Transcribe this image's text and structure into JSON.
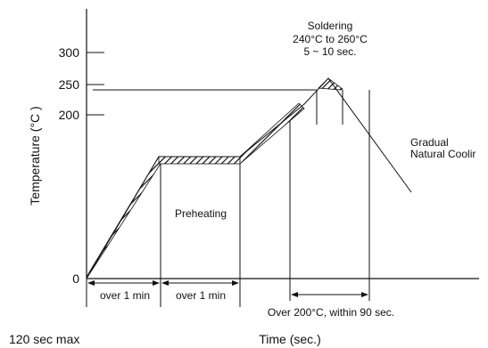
{
  "chart_data": {
    "type": "line",
    "ylabel": "Temperature (°C )",
    "xlabel": "Time (sec.)",
    "y_ticks": [
      "300",
      "250",
      "200",
      "0"
    ],
    "y_tick_values": [
      300,
      250,
      200,
      0
    ],
    "profile": {
      "start_temp": 0,
      "preheat_temp": 150,
      "solder_ref_line": 240,
      "peak_temp": 260,
      "end_temp": 110
    },
    "annotations": {
      "soldering_title": "Soldering",
      "soldering_range": "240°C to 260°C",
      "soldering_time": "5 ~ 10 sec.",
      "cooling_line1": "Gradual",
      "cooling_line2": "Natural Coolir",
      "preheating": "Preheating",
      "interval_1": "over 1 min",
      "interval_2": "over 1 min",
      "over200": "Over 200°C, within 90 sec.",
      "max_label": "120 sec max"
    }
  }
}
